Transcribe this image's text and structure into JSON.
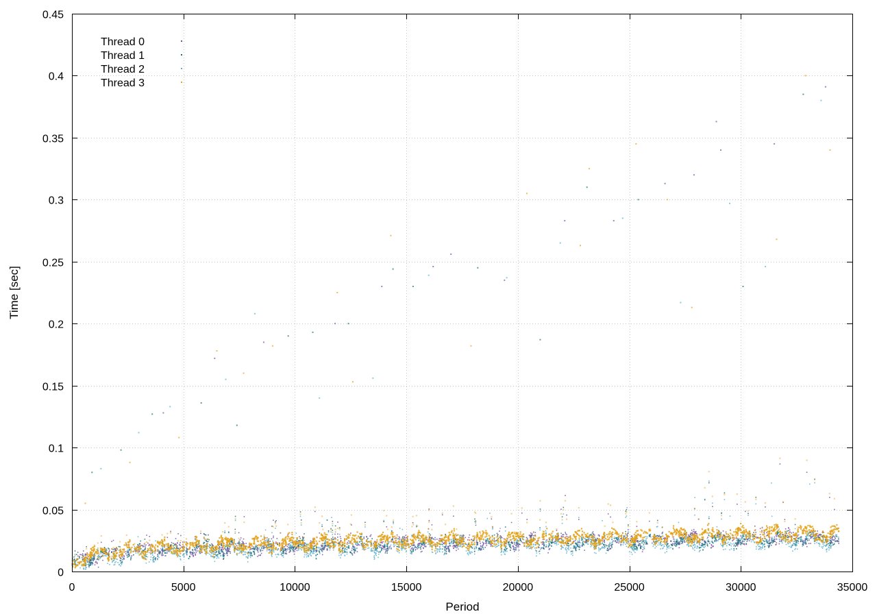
{
  "chart_data": {
    "type": "scatter",
    "title": "",
    "xlabel": "Period",
    "ylabel": "Time [sec]",
    "xlim": [
      0,
      35000
    ],
    "ylim": [
      0,
      0.45
    ],
    "xticks": [
      0,
      5000,
      10000,
      15000,
      20000,
      25000,
      30000,
      35000
    ],
    "xtick_labels": [
      "0",
      "5000",
      "10000",
      "15000",
      "20000",
      "25000",
      "30000",
      "35000"
    ],
    "yticks": [
      0,
      0.05,
      0.1,
      0.15,
      0.2,
      0.25,
      0.3,
      0.35,
      0.4,
      0.45
    ],
    "ytick_labels": [
      "0",
      "0.05",
      "0.1",
      "0.15",
      "0.2",
      "0.25",
      "0.3",
      "0.35",
      "0.4",
      "0.45"
    ],
    "grid": true,
    "legend_position": "top-left",
    "point_count_per_series": 34400,
    "series": [
      {
        "name": "Thread 0",
        "color": "#7a4fa3",
        "trend": [
          [
            0,
            0.006
          ],
          [
            2000,
            0.013
          ],
          [
            5000,
            0.017
          ],
          [
            10000,
            0.019
          ],
          [
            15000,
            0.021
          ],
          [
            20000,
            0.022
          ],
          [
            25000,
            0.023
          ],
          [
            30000,
            0.025
          ],
          [
            34400,
            0.026
          ]
        ],
        "outliers": [
          [
            4100,
            0.128
          ],
          [
            6400,
            0.172
          ],
          [
            8600,
            0.185
          ],
          [
            11800,
            0.2
          ],
          [
            13900,
            0.23
          ],
          [
            16200,
            0.246
          ],
          [
            17000,
            0.256
          ],
          [
            19400,
            0.235
          ],
          [
            22100,
            0.283
          ],
          [
            24300,
            0.283
          ],
          [
            26600,
            0.313
          ],
          [
            28900,
            0.363
          ],
          [
            31500,
            0.345
          ],
          [
            33800,
            0.391
          ],
          [
            27900,
            0.32
          ],
          [
            29100,
            0.34
          ]
        ]
      },
      {
        "name": "Thread 1",
        "color": "#1f6f6f",
        "trend": [
          [
            0,
            0.006
          ],
          [
            2000,
            0.012
          ],
          [
            5000,
            0.016
          ],
          [
            10000,
            0.018
          ],
          [
            15000,
            0.02
          ],
          [
            20000,
            0.021
          ],
          [
            25000,
            0.022
          ],
          [
            30000,
            0.024
          ],
          [
            34400,
            0.025
          ]
        ],
        "outliers": [
          [
            900,
            0.08
          ],
          [
            2200,
            0.098
          ],
          [
            3600,
            0.127
          ],
          [
            5800,
            0.136
          ],
          [
            7400,
            0.118
          ],
          [
            9700,
            0.19
          ],
          [
            10800,
            0.193
          ],
          [
            12400,
            0.2
          ],
          [
            14400,
            0.244
          ],
          [
            15300,
            0.23
          ],
          [
            18200,
            0.245
          ],
          [
            21000,
            0.187
          ],
          [
            23100,
            0.31
          ],
          [
            25400,
            0.3
          ],
          [
            30100,
            0.23
          ],
          [
            32800,
            0.385
          ]
        ]
      },
      {
        "name": "Thread 2",
        "color": "#5fb1cf",
        "trend": [
          [
            0,
            0.005
          ],
          [
            2000,
            0.01
          ],
          [
            5000,
            0.014
          ],
          [
            10000,
            0.016
          ],
          [
            15000,
            0.018
          ],
          [
            20000,
            0.019
          ],
          [
            25000,
            0.02
          ],
          [
            30000,
            0.022
          ],
          [
            34400,
            0.023
          ]
        ],
        "outliers": [
          [
            1300,
            0.083
          ],
          [
            3000,
            0.112
          ],
          [
            4400,
            0.133
          ],
          [
            6900,
            0.155
          ],
          [
            8200,
            0.208
          ],
          [
            11100,
            0.14
          ],
          [
            13500,
            0.156
          ],
          [
            16000,
            0.239
          ],
          [
            19500,
            0.237
          ],
          [
            21900,
            0.265
          ],
          [
            24700,
            0.285
          ],
          [
            27300,
            0.217
          ],
          [
            29500,
            0.297
          ],
          [
            31100,
            0.246
          ],
          [
            33600,
            0.38
          ]
        ]
      },
      {
        "name": "Thread 3",
        "color": "#e3a21a",
        "trend": [
          [
            0,
            0.007
          ],
          [
            2000,
            0.014
          ],
          [
            5000,
            0.018
          ],
          [
            10000,
            0.021
          ],
          [
            15000,
            0.023
          ],
          [
            20000,
            0.024
          ],
          [
            25000,
            0.026
          ],
          [
            30000,
            0.028
          ],
          [
            34400,
            0.029
          ]
        ],
        "outliers": [
          [
            600,
            0.055
          ],
          [
            2600,
            0.088
          ],
          [
            4800,
            0.108
          ],
          [
            6500,
            0.178
          ],
          [
            7700,
            0.16
          ],
          [
            9000,
            0.182
          ],
          [
            11900,
            0.225
          ],
          [
            12600,
            0.153
          ],
          [
            14300,
            0.271
          ],
          [
            17900,
            0.182
          ],
          [
            20400,
            0.305
          ],
          [
            22800,
            0.263
          ],
          [
            23200,
            0.325
          ],
          [
            25300,
            0.345
          ],
          [
            26700,
            0.3
          ],
          [
            27800,
            0.213
          ],
          [
            31600,
            0.268
          ],
          [
            32900,
            0.4
          ],
          [
            34000,
            0.34
          ]
        ]
      }
    ]
  }
}
